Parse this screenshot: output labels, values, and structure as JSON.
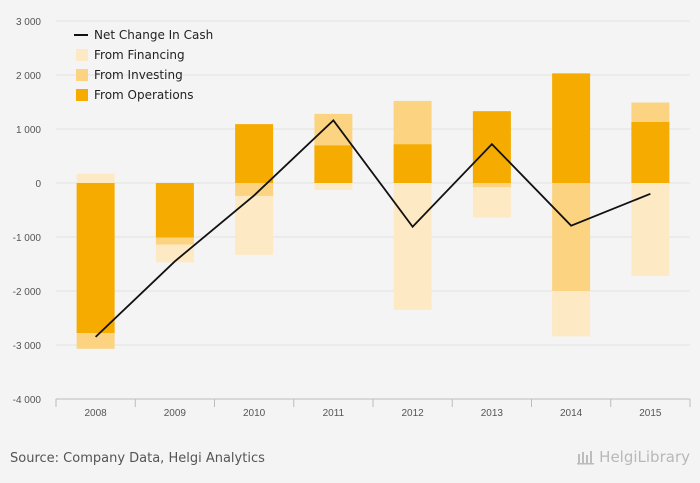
{
  "chart_data": {
    "type": "bar",
    "stacked": true,
    "categories": [
      "2008",
      "2009",
      "2010",
      "2011",
      "2012",
      "2013",
      "2014",
      "2015"
    ],
    "series": [
      {
        "name": "From Operations",
        "kind": "bar",
        "color": "#f5ab00",
        "values": [
          -2780,
          -1010,
          1090,
          700,
          720,
          1330,
          2030,
          1130
        ]
      },
      {
        "name": "From Investing",
        "kind": "bar",
        "color": "#fcd381",
        "values": [
          -290,
          -130,
          -240,
          580,
          800,
          -80,
          -2000,
          360
        ]
      },
      {
        "name": "From Financing",
        "kind": "bar",
        "color": "#fde9c3",
        "values": [
          170,
          -330,
          -1090,
          -130,
          -2350,
          -560,
          -840,
          -1720
        ]
      },
      {
        "name": "Net Change In Cash",
        "kind": "line",
        "color": "#111111",
        "values": [
          -2850,
          -1450,
          -230,
          1160,
          -810,
          720,
          -790,
          -200
        ]
      }
    ],
    "legend_order": [
      "Net Change In Cash",
      "From Financing",
      "From Investing",
      "From Operations"
    ],
    "legend_position": "top-left",
    "ylim": [
      -4000,
      3000
    ],
    "yticks": [
      3000,
      2000,
      1000,
      0,
      -1000,
      -2000,
      -3000,
      -4000
    ],
    "ytick_labels": [
      "3 000",
      "2 000",
      "1 000",
      "0",
      "-1 000",
      "-2 000",
      "-3 000",
      "-4 000"
    ],
    "grid": true,
    "title": "",
    "xlabel": "",
    "ylabel": ""
  },
  "footer": {
    "source": "Source: Company Data, Helgi Analytics",
    "brand": "HelgiLibrary"
  }
}
